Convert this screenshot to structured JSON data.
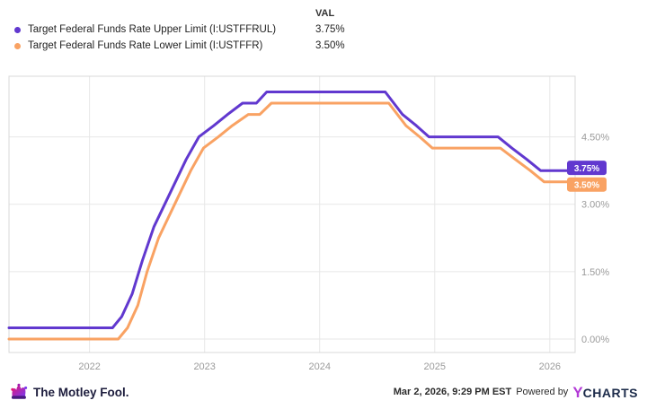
{
  "legend": {
    "val_header": "VAL",
    "items": [
      {
        "id": "upper",
        "label": "Target Federal Funds Rate Upper Limit (I:USTFFRUL)",
        "value": "3.75%",
        "color": "#6138cf"
      },
      {
        "id": "lower",
        "label": "Target Federal Funds Rate Lower Limit (I:USTFFR)",
        "value": "3.50%",
        "color": "#f9a263"
      }
    ]
  },
  "chart_data": {
    "type": "line",
    "title": "",
    "xlabel": "",
    "ylabel": "",
    "x_ticks": [
      2022,
      2023,
      2024,
      2025,
      2026
    ],
    "y_ticks": [
      0,
      1.5,
      3,
      4.5
    ],
    "y_tick_labels": [
      "0.00%",
      "1.50%",
      "3.00%",
      "4.50%"
    ],
    "xlim": [
      2021.3,
      2026.22
    ],
    "ylim": [
      -0.3,
      5.85
    ],
    "grid": true,
    "grid_color": "#e7e7e7",
    "border_color": "#d8d8d8",
    "axis_text_color": "#9b9b9b",
    "legend_position": "top-left",
    "series": [
      {
        "id": "upper",
        "name": "Target Federal Funds Rate Upper Limit (I:USTFFRUL)",
        "color": "#6138cf",
        "end_label": "3.75%",
        "points": [
          [
            2021.3,
            0.25
          ],
          [
            2022.2,
            0.25
          ],
          [
            2022.28,
            0.5
          ],
          [
            2022.37,
            1.0
          ],
          [
            2022.46,
            1.75
          ],
          [
            2022.56,
            2.5
          ],
          [
            2022.7,
            3.25
          ],
          [
            2022.84,
            4.0
          ],
          [
            2022.95,
            4.5
          ],
          [
            2023.08,
            4.75
          ],
          [
            2023.2,
            5.0
          ],
          [
            2023.33,
            5.25
          ],
          [
            2023.45,
            5.25
          ],
          [
            2023.54,
            5.5
          ],
          [
            2024.57,
            5.5
          ],
          [
            2024.72,
            5.0
          ],
          [
            2024.84,
            4.75
          ],
          [
            2024.95,
            4.5
          ],
          [
            2025.55,
            4.5
          ],
          [
            2025.67,
            4.25
          ],
          [
            2025.8,
            4.0
          ],
          [
            2025.92,
            3.75
          ],
          [
            2026.22,
            3.75
          ]
        ]
      },
      {
        "id": "lower",
        "name": "Target Federal Funds Rate Lower Limit (I:USTFFR)",
        "color": "#f9a263",
        "end_label": "3.50%",
        "points": [
          [
            2021.3,
            0.0
          ],
          [
            2022.25,
            0.0
          ],
          [
            2022.33,
            0.25
          ],
          [
            2022.42,
            0.75
          ],
          [
            2022.5,
            1.5
          ],
          [
            2022.6,
            2.25
          ],
          [
            2022.74,
            3.0
          ],
          [
            2022.88,
            3.75
          ],
          [
            2022.99,
            4.25
          ],
          [
            2023.12,
            4.5
          ],
          [
            2023.24,
            4.75
          ],
          [
            2023.38,
            5.0
          ],
          [
            2023.48,
            5.0
          ],
          [
            2023.58,
            5.25
          ],
          [
            2024.6,
            5.25
          ],
          [
            2024.75,
            4.75
          ],
          [
            2024.87,
            4.5
          ],
          [
            2024.98,
            4.25
          ],
          [
            2025.57,
            4.25
          ],
          [
            2025.7,
            4.0
          ],
          [
            2025.83,
            3.75
          ],
          [
            2025.95,
            3.5
          ],
          [
            2026.22,
            3.5
          ]
        ]
      }
    ]
  },
  "footer": {
    "brand": "The Motley Fool.",
    "timestamp": "Mar 2, 2026, 9:29 PM EST",
    "powered_by": "Powered by",
    "ycharts_y": "Y",
    "ycharts_rest": "CHARTS"
  }
}
